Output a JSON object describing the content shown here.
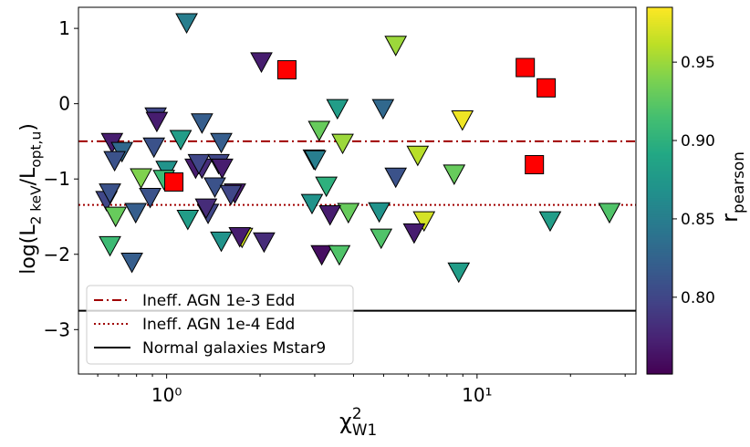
{
  "chart_data": {
    "type": "scatter",
    "xscale": "log",
    "xlim": [
      0.52,
      32.5
    ],
    "ylim": [
      -3.59,
      1.28
    ],
    "xticks": [
      {
        "value": 1,
        "label": "10⁰"
      },
      {
        "value": 10,
        "label": "10¹"
      }
    ],
    "xminorticks": [
      0.6,
      0.7,
      0.8,
      0.9,
      2,
      3,
      4,
      5,
      6,
      7,
      8,
      9,
      20,
      30
    ],
    "yticks": [
      {
        "value": -3,
        "label": "−3"
      },
      {
        "value": -2,
        "label": "−2"
      },
      {
        "value": -1,
        "label": "−1"
      },
      {
        "value": 0,
        "label": "0"
      },
      {
        "value": 1,
        "label": "1"
      }
    ],
    "xlabel": [
      {
        "t": "χ"
      },
      {
        "t": "2",
        "sup": true
      },
      {
        "t": "W1",
        "sub": true
      }
    ],
    "ylabel": [
      {
        "t": "log("
      },
      {
        "t": "L"
      },
      {
        "t": "2 keV",
        "sub": true
      },
      {
        "t": "/"
      },
      {
        "t": "L"
      },
      {
        "t": "opt,u",
        "sub": true
      },
      {
        "t": ")"
      }
    ],
    "colormap": "viridis",
    "clim": [
      0.751,
      0.985
    ],
    "cticks": [
      {
        "value": 0.8,
        "label": "0.80"
      },
      {
        "value": 0.85,
        "label": "0.85"
      },
      {
        "value": 0.9,
        "label": "0.90"
      },
      {
        "value": 0.95,
        "label": "0.95"
      }
    ],
    "clabel": [
      {
        "t": "r"
      },
      {
        "t": "pearson",
        "sub": true
      }
    ],
    "legend": "lower left",
    "series": [
      {
        "marker": "triangle-down",
        "x": [
          1.16,
          2.02,
          5.47,
          8.97,
          4.98,
          3.55,
          3.1,
          3.69,
          2.98,
          3.01,
          3.27,
          2.94,
          3.85,
          3.36,
          4.84,
          5.47,
          6.44,
          8.44,
          6.75,
          4.91,
          6.27,
          3.16,
          3.6,
          8.73,
          17.2,
          26.7,
          0.667,
          0.718,
          0.68,
          0.922,
          0.93,
          0.91,
          1.11,
          1.3,
          1.5,
          0.827,
          1.0,
          0.98,
          1.24,
          1.3,
          1.27,
          1.47,
          1.51,
          1.43,
          1.66,
          1.61,
          0.885,
          0.64,
          0.657,
          0.685,
          0.795,
          1.17,
          1.36,
          1.34,
          1.75,
          1.72,
          1.5,
          2.06,
          0.657,
          0.773
        ],
        "y": [
          1.08,
          0.56,
          0.78,
          -0.21,
          -0.06,
          -0.06,
          -0.35,
          -0.52,
          -0.73,
          -0.74,
          -1.09,
          -1.32,
          -1.44,
          -1.47,
          -1.43,
          -0.97,
          -0.68,
          -0.93,
          -1.55,
          -1.78,
          -1.71,
          -2.0,
          -2.0,
          -2.23,
          -1.55,
          -1.44,
          -0.51,
          -0.63,
          -0.75,
          -0.17,
          -0.23,
          -0.57,
          -0.47,
          -0.25,
          -0.51,
          -0.98,
          -0.88,
          -1.0,
          -0.85,
          -0.85,
          -0.79,
          -0.79,
          -0.85,
          -1.1,
          -1.18,
          -1.2,
          -1.24,
          -1.28,
          -1.18,
          -1.49,
          -1.44,
          -1.53,
          -1.45,
          -1.38,
          -1.77,
          -1.76,
          -1.82,
          -1.83,
          -1.88,
          -2.1
        ],
        "c": [
          0.85,
          0.77,
          0.95,
          0.98,
          0.83,
          0.88,
          0.93,
          0.95,
          0.81,
          0.85,
          0.9,
          0.87,
          0.93,
          0.77,
          0.87,
          0.81,
          0.96,
          0.93,
          0.97,
          0.92,
          0.77,
          0.76,
          0.92,
          0.88,
          0.88,
          0.92,
          0.77,
          0.83,
          0.81,
          0.8,
          0.77,
          0.81,
          0.88,
          0.82,
          0.82,
          0.94,
          0.87,
          0.91,
          0.77,
          0.78,
          0.8,
          0.8,
          0.77,
          0.81,
          0.77,
          0.8,
          0.81,
          0.8,
          0.81,
          0.93,
          0.82,
          0.88,
          0.8,
          0.78,
          0.97,
          0.77,
          0.87,
          0.78,
          0.91,
          0.82
        ]
      },
      {
        "marker": "square",
        "color": "#ff0000",
        "x": [
          1.055,
          2.44,
          14.3,
          16.7,
          15.3
        ],
        "y": [
          -1.04,
          0.45,
          0.48,
          0.21,
          -0.81
        ]
      }
    ],
    "hlines": [
      {
        "name": "Ineff. AGN 1e-3 Edd",
        "y": -0.5,
        "color": "#a00000",
        "style": "dashdot"
      },
      {
        "name": "Ineff. AGN 1e-4 Edd",
        "y": -1.345,
        "color": "#a00000",
        "style": "dotted"
      },
      {
        "name": "Normal galaxies Mstar9",
        "y": -2.75,
        "color": "#000000",
        "style": "solid"
      }
    ]
  }
}
